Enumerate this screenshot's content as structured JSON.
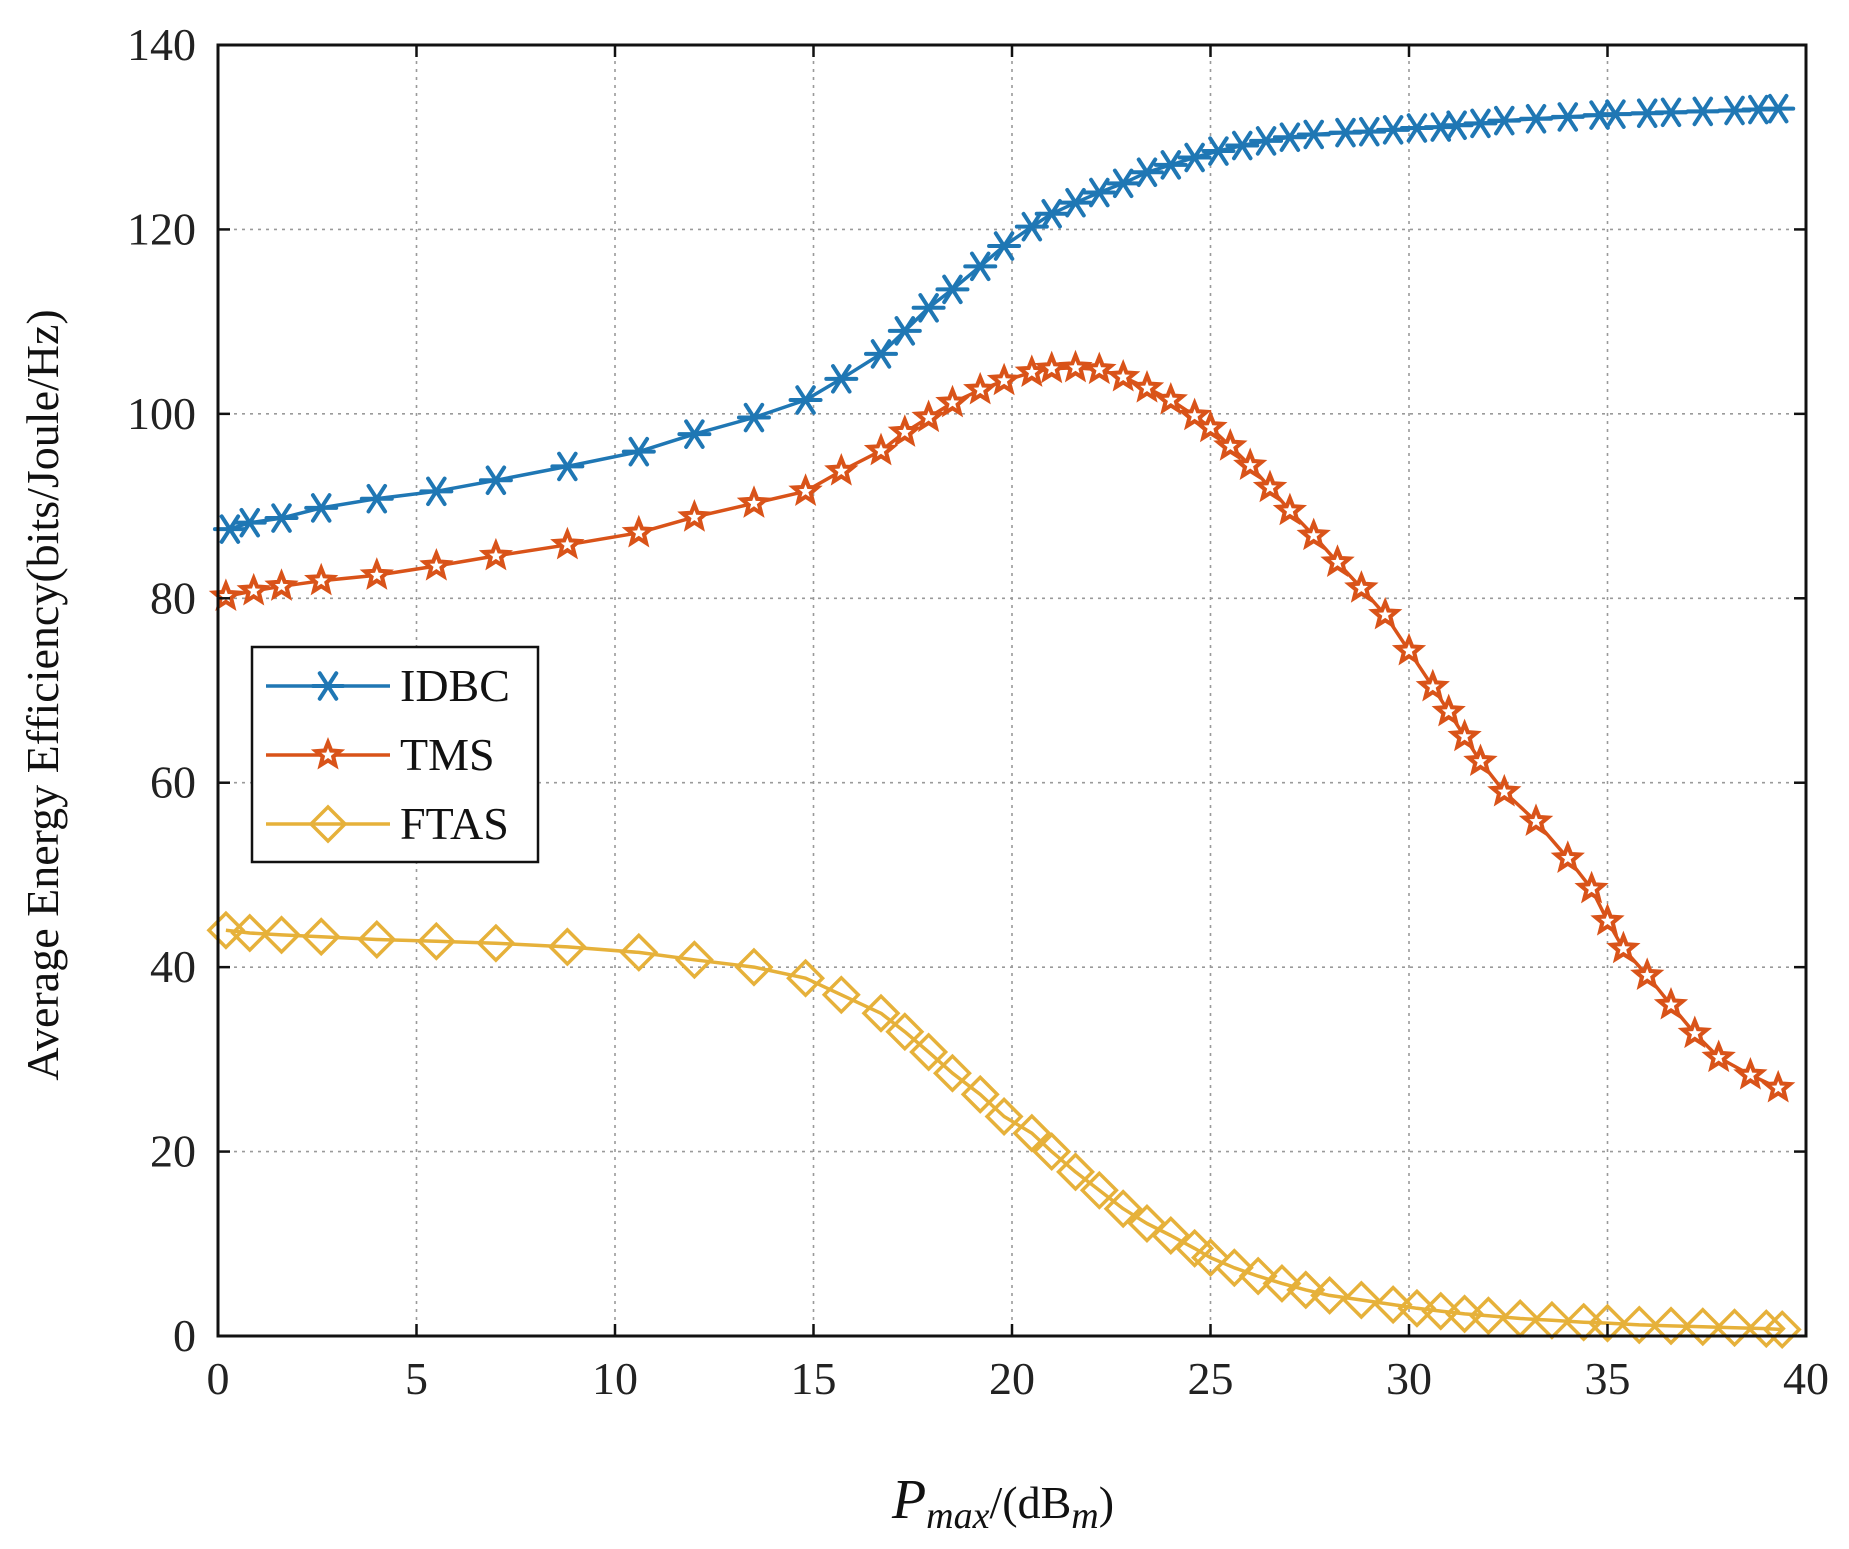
{
  "chart_data": {
    "type": "line",
    "title": "",
    "xlabel_main": "P",
    "xlabel_sub": "max",
    "xlabel_unit_prefix": "/(dB",
    "xlabel_unit_sub": "m",
    "xlabel_unit_suffix": ")",
    "ylabel": "Average Energy Efficiency(bits/Joule/Hz)",
    "xlim": [
      0,
      40
    ],
    "ylim": [
      0,
      140
    ],
    "xticks": [
      0,
      5,
      10,
      15,
      20,
      25,
      30,
      35,
      40
    ],
    "yticks": [
      0,
      20,
      40,
      60,
      80,
      100,
      120,
      140
    ],
    "grid": true,
    "legend_position": "middle-left",
    "series": [
      {
        "name": "IDBC",
        "color": "#1f77b4",
        "marker": "asterisk",
        "x": [
          0.3,
          0.8,
          1.6,
          2.6,
          4.0,
          5.5,
          7.0,
          8.8,
          10.6,
          12.0,
          13.5,
          14.8,
          15.7,
          16.7,
          17.3,
          17.9,
          18.5,
          19.2,
          19.8,
          20.5,
          21.0,
          21.6,
          22.2,
          22.8,
          23.4,
          24.0,
          24.6,
          25.2,
          25.8,
          26.4,
          27.0,
          27.6,
          28.4,
          29.0,
          29.6,
          30.2,
          30.8,
          31.2,
          31.8,
          32.4,
          33.2,
          34.0,
          34.8,
          35.2,
          36.0,
          36.6,
          37.4,
          38.2,
          38.8,
          39.3
        ],
        "y": [
          87.5,
          88.2,
          88.7,
          89.8,
          90.8,
          91.6,
          92.8,
          94.3,
          95.9,
          97.8,
          99.6,
          101.5,
          103.8,
          106.5,
          109.0,
          111.5,
          113.5,
          116.0,
          118.2,
          120.3,
          121.7,
          122.9,
          124.0,
          125.0,
          126.2,
          127.0,
          127.8,
          128.5,
          129.1,
          129.6,
          130.0,
          130.3,
          130.5,
          130.6,
          130.8,
          131.0,
          131.1,
          131.3,
          131.5,
          131.8,
          132.0,
          132.2,
          132.4,
          132.5,
          132.6,
          132.7,
          132.8,
          132.9,
          133.0,
          133.1
        ]
      },
      {
        "name": "TMS",
        "color": "#d95319",
        "marker": "star",
        "x": [
          0.2,
          0.9,
          1.6,
          2.6,
          4.0,
          5.5,
          7.0,
          8.8,
          10.6,
          12.0,
          13.5,
          14.8,
          15.7,
          16.7,
          17.3,
          17.9,
          18.5,
          19.2,
          19.8,
          20.5,
          21.0,
          21.6,
          22.2,
          22.8,
          23.4,
          24.0,
          24.6,
          25.0,
          25.5,
          26.0,
          26.5,
          27.0,
          27.6,
          28.2,
          28.8,
          29.4,
          30.0,
          30.6,
          31.0,
          31.4,
          31.8,
          32.4,
          33.2,
          34.0,
          34.6,
          35.0,
          35.4,
          36.0,
          36.6,
          37.2,
          37.8,
          38.6,
          39.3
        ],
        "y": [
          80.2,
          80.8,
          81.3,
          81.9,
          82.5,
          83.5,
          84.6,
          85.8,
          87.1,
          88.8,
          90.3,
          91.6,
          93.8,
          96.0,
          98.0,
          99.6,
          101.2,
          102.6,
          103.6,
          104.5,
          104.9,
          105.0,
          104.8,
          104.0,
          102.8,
          101.5,
          99.8,
          98.5,
          96.5,
          94.4,
          92.0,
          89.5,
          86.8,
          83.9,
          81.1,
          78.2,
          74.3,
          70.4,
          67.7,
          65.0,
          62.3,
          59.0,
          55.8,
          51.8,
          48.5,
          45.0,
          42.0,
          39.1,
          35.9,
          32.8,
          30.2,
          28.3,
          26.9
        ]
      },
      {
        "name": "FTAS",
        "color": "#e6b13a",
        "marker": "diamond",
        "x": [
          0.2,
          0.8,
          1.6,
          2.6,
          4.0,
          5.5,
          7.0,
          8.8,
          10.6,
          12.0,
          13.5,
          14.8,
          15.7,
          16.7,
          17.3,
          17.9,
          18.5,
          19.2,
          19.8,
          20.5,
          21.0,
          21.6,
          22.2,
          22.8,
          23.4,
          24.0,
          24.6,
          25.0,
          25.6,
          26.2,
          26.8,
          27.4,
          28.0,
          28.8,
          29.6,
          30.2,
          30.8,
          31.4,
          32.0,
          32.8,
          33.6,
          34.4,
          35.0,
          35.8,
          36.6,
          37.4,
          38.2,
          39.0,
          39.4
        ],
        "y": [
          44.0,
          43.7,
          43.5,
          43.3,
          43.0,
          42.8,
          42.6,
          42.2,
          41.6,
          40.8,
          40.0,
          38.8,
          37.0,
          35.0,
          33.0,
          30.8,
          28.5,
          26.2,
          23.8,
          22.0,
          20.0,
          17.8,
          15.8,
          13.8,
          12.2,
          10.9,
          9.5,
          8.5,
          7.4,
          6.5,
          5.7,
          5.0,
          4.4,
          3.9,
          3.4,
          3.0,
          2.7,
          2.4,
          2.2,
          1.9,
          1.7,
          1.5,
          1.4,
          1.2,
          1.1,
          1.0,
          0.9,
          0.8,
          0.7
        ]
      }
    ]
  }
}
